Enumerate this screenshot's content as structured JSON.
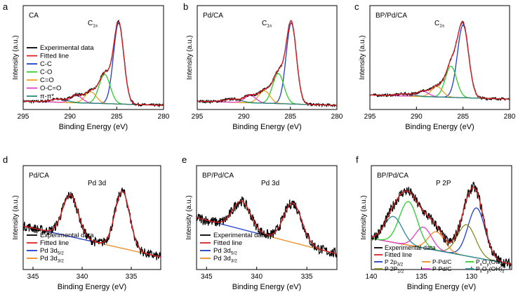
{
  "chart_data": [
    {
      "type": "line",
      "panel_letter": "a",
      "sample": "CA",
      "peak_label": "C",
      "peak_sub": "1s",
      "xlabel": "Binding Energy (eV)",
      "ylabel": "Intensity (a.u.)",
      "xlim": [
        295,
        280
      ],
      "ylim": [
        0,
        1
      ],
      "xticks": [
        295,
        290,
        285,
        280
      ],
      "baseline": {
        "start": 0.08,
        "end": 0.04
      },
      "peaks": [
        {
          "name": "C-C",
          "color": "#1f3fcf",
          "center": 284.8,
          "height": 0.78,
          "width": 0.55
        },
        {
          "name": "C-O",
          "color": "#2ecc2e",
          "center": 286.3,
          "height": 0.28,
          "width": 0.6
        },
        {
          "name": "C=O",
          "color": "#f0a020",
          "center": 287.8,
          "height": 0.11,
          "width": 0.6
        },
        {
          "name": "O-C=O",
          "color": "#e040c8",
          "center": 289.3,
          "height": 0.07,
          "width": 0.6
        },
        {
          "name": "π-π*",
          "color": "#2a8a7a",
          "center": 291.2,
          "height": 0.03,
          "width": 0.9
        }
      ],
      "legend": [
        {
          "label": "Experimental data",
          "color": "#000000"
        },
        {
          "label": "Fitted line",
          "color": "#e02020"
        },
        {
          "label": "C-C",
          "color": "#1f3fcf"
        },
        {
          "label": "C-O",
          "color": "#2ecc2e"
        },
        {
          "label": "C=O",
          "color": "#f0a020"
        },
        {
          "label": "O-C=O",
          "color": "#e040c8"
        },
        {
          "label": "π-π*",
          "color": "#2a8a7a"
        }
      ]
    },
    {
      "type": "line",
      "panel_letter": "b",
      "sample": "Pd/CA",
      "peak_label": "C",
      "peak_sub": "1s",
      "xlabel": "Binding Energy (eV)",
      "ylabel": "Intensity (a.u.)",
      "xlim": [
        295,
        280
      ],
      "ylim": [
        0,
        1
      ],
      "xticks": [
        295,
        290,
        285,
        280
      ],
      "baseline": {
        "start": 0.08,
        "end": 0.04
      },
      "peaks": [
        {
          "name": "C-C",
          "color": "#1f3fcf",
          "center": 284.9,
          "height": 0.78,
          "width": 0.55
        },
        {
          "name": "C-O",
          "color": "#2ecc2e",
          "center": 286.3,
          "height": 0.29,
          "width": 0.6
        },
        {
          "name": "C=O",
          "color": "#f0a020",
          "center": 287.8,
          "height": 0.12,
          "width": 0.6
        },
        {
          "name": "O-C=O",
          "color": "#e040c8",
          "center": 289.3,
          "height": 0.07,
          "width": 0.6
        },
        {
          "name": "π-π*",
          "color": "#2a8a7a",
          "center": 291.2,
          "height": 0.03,
          "width": 0.9
        }
      ],
      "legend": []
    },
    {
      "type": "line",
      "panel_letter": "c",
      "sample": "BP/Pd/CA",
      "peak_label": "C",
      "peak_sub": "1s",
      "xlabel": "Binding Energy (eV)",
      "ylabel": "Intensity (a.u.)",
      "xlim": [
        295,
        280
      ],
      "ylim": [
        0,
        1
      ],
      "xticks": [
        295,
        290,
        285,
        280
      ],
      "baseline": {
        "start": 0.14,
        "end": 0.1
      },
      "peaks": [
        {
          "name": "C-C",
          "color": "#1f3fcf",
          "center": 285.0,
          "height": 0.7,
          "width": 0.6
        },
        {
          "name": "C-O",
          "color": "#2ecc2e",
          "center": 286.3,
          "height": 0.3,
          "width": 0.6
        },
        {
          "name": "C=O",
          "color": "#f0a020",
          "center": 287.8,
          "height": 0.1,
          "width": 0.6
        },
        {
          "name": "O-C=O",
          "color": "#e040c8",
          "center": 289.3,
          "height": 0.05,
          "width": 0.6
        },
        {
          "name": "π-π*",
          "color": "#2a8a7a",
          "center": 291.2,
          "height": 0.02,
          "width": 0.9
        }
      ],
      "legend": []
    },
    {
      "type": "line",
      "panel_letter": "d",
      "sample": "Pd/CA",
      "peak_label": "Pd 3d",
      "peak_sub": "",
      "xlabel": "Binding Energy (eV)",
      "ylabel": "Intensity (a.u.)",
      "xlim": [
        346,
        332
      ],
      "ylim": [
        0,
        1
      ],
      "xticks": [
        345,
        340,
        335
      ],
      "baseline": {
        "start": 0.42,
        "end": 0.12
      },
      "noise": 0.045,
      "peaks": [
        {
          "name": "Pd 3d5/2",
          "color": "#1f3fcf",
          "center": 335.9,
          "height": 0.55,
          "width": 0.75
        },
        {
          "name": "Pd 3d3/2",
          "color": "#f08a20",
          "center": 341.2,
          "height": 0.4,
          "width": 0.8
        }
      ],
      "legend": [
        {
          "label": "Experimental data",
          "color": "#000000",
          "sub": ""
        },
        {
          "label": "Fitted line",
          "color": "#e02020",
          "sub": ""
        },
        {
          "label": "Pd 3d",
          "color": "#1f3fcf",
          "sub": "5/2"
        },
        {
          "label": "Pd 3d",
          "color": "#f08a20",
          "sub": "3/2"
        }
      ]
    },
    {
      "type": "line",
      "panel_letter": "e",
      "sample": "BP/Pd/CA",
      "peak_label": "Pd 3d",
      "peak_sub": "",
      "xlabel": "Binding Energy (eV)",
      "ylabel": "Intensity (a.u.)",
      "xlim": [
        346,
        332
      ],
      "ylim": [
        0,
        1
      ],
      "xticks": [
        345,
        340,
        335
      ],
      "baseline": {
        "start": 0.5,
        "end": 0.15
      },
      "noise": 0.05,
      "peaks": [
        {
          "name": "Pd 3d5/2",
          "color": "#1f3fcf",
          "center": 336.4,
          "height": 0.38,
          "width": 0.9
        },
        {
          "name": "Pd 3d3/2",
          "color": "#f08a20",
          "center": 341.5,
          "height": 0.27,
          "width": 0.9
        }
      ],
      "legend": [
        {
          "label": "Experimental data",
          "color": "#000000",
          "sub": ""
        },
        {
          "label": "Fitted line",
          "color": "#e02020",
          "sub": ""
        },
        {
          "label": "Pd 3d",
          "color": "#1f3fcf",
          "sub": "5/2"
        },
        {
          "label": "Pd 3d",
          "color": "#f08a20",
          "sub": "3/2"
        }
      ]
    },
    {
      "type": "line",
      "panel_letter": "f",
      "sample": "BP/Pd/CA",
      "peak_label": "P 2P",
      "peak_sub": "",
      "xlabel": "Binding Energy (eV)",
      "ylabel": "Intensity (a.u.)",
      "xlim": [
        140,
        126
      ],
      "ylim": [
        0,
        1
      ],
      "xticks": [
        140,
        135,
        130
      ],
      "baseline": {
        "start": 0.3,
        "end": 0.05
      },
      "noise": 0.05,
      "peaks": [
        {
          "name": "P 2p3/2",
          "color": "#1f3fcf",
          "center": 129.5,
          "height": 0.48,
          "width": 0.85
        },
        {
          "name": "P 2P1/2",
          "color": "#8a8a20",
          "center": 130.5,
          "height": 0.3,
          "width": 0.9
        },
        {
          "name": "P-Pd/C 1",
          "color": "#f08a20",
          "center": 133.5,
          "height": 0.18,
          "width": 0.8
        },
        {
          "name": "P-Pd/C 2",
          "color": "#e040c8",
          "center": 134.8,
          "height": 0.2,
          "width": 0.8
        },
        {
          "name": "PxOy(OH)z 1",
          "color": "#2ecc2e",
          "center": 136.3,
          "height": 0.42,
          "width": 0.9
        },
        {
          "name": "PxOy(OH)z 2",
          "color": "#2a8a9a",
          "center": 137.8,
          "height": 0.25,
          "width": 0.9
        }
      ],
      "legend": [
        {
          "label": "Experimental data",
          "color": "#000000",
          "sub": "",
          "sub2": ""
        },
        {
          "label": "Fitted line",
          "color": "#e02020",
          "sub": "",
          "sub2": ""
        },
        {
          "label": "P 2p",
          "color": "#1f3fcf",
          "sub": "3/2",
          "sub2": ""
        },
        {
          "label": "P 2P",
          "color": "#8a8a20",
          "sub": "1/2",
          "sub2": ""
        },
        {
          "label": "P-Pd/C",
          "color": "#f08a20",
          "sub": "",
          "sub2": ""
        },
        {
          "label": "P-Pd/C",
          "color": "#e040c8",
          "sub": "",
          "sub2": ""
        },
        {
          "label": "P",
          "color": "#2ecc2e",
          "sub": "x",
          "sub2": "O",
          "sub3": "y",
          "tail": "(OH)",
          "sub4": "z"
        },
        {
          "label": "P",
          "color": "#2a8a9a",
          "sub": "x",
          "sub2": "O",
          "sub3": "y",
          "tail": "(OH)",
          "sub4": "z"
        }
      ]
    }
  ]
}
